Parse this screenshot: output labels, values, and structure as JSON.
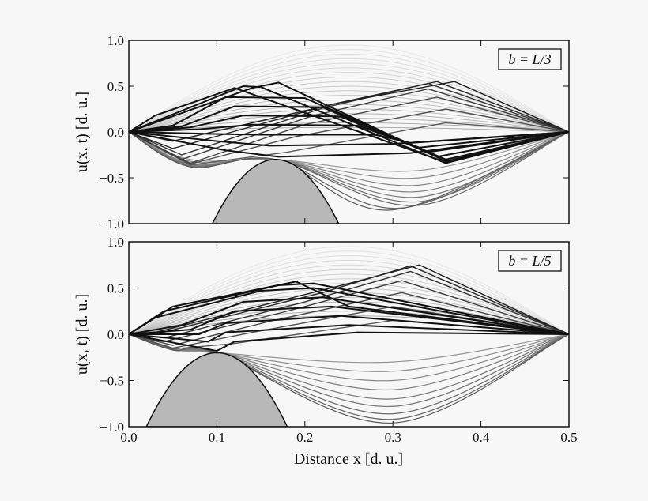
{
  "chart_data": [
    {
      "type": "line",
      "annotation": "b = L/3",
      "xlabel": "",
      "ylabel": "u(x, t) [d. u.]",
      "xlim": [
        0,
        0.5
      ],
      "ylim": [
        -1,
        1
      ],
      "xticks": [
        "0.0",
        "0.1",
        "0.2",
        "0.3",
        "0.4",
        "0.5"
      ],
      "yticks": [
        "1.0",
        "0.5",
        "0.0",
        "−0.5",
        "−1.0"
      ],
      "grid": false,
      "obstacle": {
        "apex": [
          0.1667,
          -0.3
        ],
        "base_x": [
          0.095,
          0.24
        ],
        "fill": "#b8b8b8"
      },
      "sine_amplitudes": [
        0.95,
        0.9,
        0.85,
        0.8,
        0.75,
        0.7,
        0.65,
        0.6,
        0.55,
        0.5,
        0.45,
        0.4,
        0.35,
        0.3,
        0.25,
        0.2,
        0.15,
        0.1,
        0.05
      ],
      "contact_curves": [
        [
          [
            0,
            0
          ],
          [
            0.07,
            -0.3
          ],
          [
            0.1667,
            -0.3
          ],
          [
            0.33,
            -0.42
          ],
          [
            0.5,
            0
          ]
        ],
        [
          [
            0,
            0
          ],
          [
            0.07,
            -0.32
          ],
          [
            0.1667,
            -0.3
          ],
          [
            0.33,
            -0.5
          ],
          [
            0.5,
            0
          ]
        ],
        [
          [
            0,
            0
          ],
          [
            0.07,
            -0.34
          ],
          [
            0.1667,
            -0.3
          ],
          [
            0.33,
            -0.58
          ],
          [
            0.5,
            0
          ]
        ],
        [
          [
            0,
            0
          ],
          [
            0.07,
            -0.35
          ],
          [
            0.1667,
            -0.3
          ],
          [
            0.33,
            -0.65
          ],
          [
            0.5,
            0
          ]
        ],
        [
          [
            0,
            0
          ],
          [
            0.07,
            -0.36
          ],
          [
            0.1667,
            -0.3
          ],
          [
            0.33,
            -0.71
          ],
          [
            0.5,
            0
          ]
        ],
        [
          [
            0,
            0
          ],
          [
            0.07,
            -0.37
          ],
          [
            0.1667,
            -0.3
          ],
          [
            0.33,
            -0.76
          ],
          [
            0.5,
            0
          ]
        ],
        [
          [
            0,
            0
          ],
          [
            0.07,
            -0.38
          ],
          [
            0.1667,
            -0.3
          ],
          [
            0.33,
            -0.8
          ],
          [
            0.5,
            0
          ]
        ],
        [
          [
            0,
            0
          ],
          [
            0.07,
            -0.38
          ],
          [
            0.1667,
            -0.3
          ],
          [
            0.31,
            -0.83
          ],
          [
            0.5,
            0
          ]
        ],
        [
          [
            0,
            0
          ],
          [
            0.07,
            -0.38
          ],
          [
            0.1667,
            -0.3
          ],
          [
            0.3,
            -0.85
          ],
          [
            0.5,
            0
          ]
        ]
      ],
      "rebound_curves": [
        [
          [
            0,
            0
          ],
          [
            0.07,
            -0.36
          ],
          [
            0.18,
            -0.22
          ],
          [
            0.36,
            0.1
          ],
          [
            0.5,
            0
          ]
        ],
        [
          [
            0,
            0
          ],
          [
            0.07,
            -0.35
          ],
          [
            0.19,
            -0.05
          ],
          [
            0.36,
            0.25
          ],
          [
            0.5,
            0
          ]
        ],
        [
          [
            0,
            0
          ],
          [
            0.07,
            -0.34
          ],
          [
            0.2,
            0.08
          ],
          [
            0.35,
            0.38
          ],
          [
            0.5,
            0
          ]
        ],
        [
          [
            0,
            0
          ],
          [
            0.06,
            -0.3
          ],
          [
            0.21,
            0.18
          ],
          [
            0.34,
            0.47
          ],
          [
            0.5,
            0
          ]
        ],
        [
          [
            0,
            0
          ],
          [
            0.06,
            -0.25
          ],
          [
            0.22,
            0.26
          ],
          [
            0.34,
            0.53
          ],
          [
            0.5,
            0
          ]
        ],
        [
          [
            0,
            0
          ],
          [
            0.05,
            -0.18
          ],
          [
            0.23,
            0.3
          ],
          [
            0.35,
            0.55
          ],
          [
            0.5,
            0
          ]
        ],
        [
          [
            0,
            0
          ],
          [
            0.05,
            -0.1
          ],
          [
            0.24,
            0.32
          ],
          [
            0.37,
            0.55
          ],
          [
            0.5,
            0
          ]
        ]
      ],
      "kinked_curves": [
        [
          [
            0,
            0
          ],
          [
            0.03,
            0.18
          ],
          [
            0.12,
            0.48
          ],
          [
            0.36,
            -0.33
          ],
          [
            0.5,
            0
          ]
        ],
        [
          [
            0,
            0
          ],
          [
            0.13,
            0.5
          ],
          [
            0.15,
            0.49
          ],
          [
            0.36,
            -0.34
          ],
          [
            0.5,
            0
          ]
        ],
        [
          [
            0,
            0
          ],
          [
            0.14,
            0.48
          ],
          [
            0.17,
            0.54
          ],
          [
            0.36,
            -0.32
          ],
          [
            0.5,
            0
          ]
        ],
        [
          [
            0,
            0
          ],
          [
            0.05,
            0.07
          ],
          [
            0.11,
            0.38
          ],
          [
            0.2,
            0.37
          ],
          [
            0.36,
            -0.3
          ],
          [
            0.5,
            0
          ]
        ],
        [
          [
            0,
            0
          ],
          [
            0.06,
            0.06
          ],
          [
            0.12,
            0.28
          ],
          [
            0.22,
            0.27
          ],
          [
            0.35,
            -0.27
          ],
          [
            0.5,
            0
          ]
        ],
        [
          [
            0,
            0
          ],
          [
            0.07,
            0.05
          ],
          [
            0.13,
            0.18
          ],
          [
            0.24,
            0.17
          ],
          [
            0.34,
            -0.22
          ],
          [
            0.5,
            0
          ]
        ],
        [
          [
            0,
            0
          ],
          [
            0.08,
            0.03
          ],
          [
            0.14,
            0.08
          ],
          [
            0.26,
            0.07
          ],
          [
            0.33,
            -0.17
          ],
          [
            0.5,
            0
          ]
        ],
        [
          [
            0,
            0
          ],
          [
            0.09,
            -0.02
          ],
          [
            0.15,
            -0.03
          ],
          [
            0.28,
            -0.03
          ],
          [
            0.32,
            -0.12
          ],
          [
            0.5,
            0
          ]
        ],
        [
          [
            0,
            0
          ],
          [
            0.1,
            -0.1
          ],
          [
            0.16,
            -0.15
          ],
          [
            0.3,
            -0.13
          ],
          [
            0.5,
            0
          ]
        ],
        [
          [
            0,
            0
          ],
          [
            0.11,
            -0.2
          ],
          [
            0.17,
            -0.27
          ],
          [
            0.32,
            -0.23
          ],
          [
            0.5,
            0
          ]
        ]
      ]
    },
    {
      "type": "line",
      "annotation": "b = L/5",
      "xlabel": "Distance x [d. u.]",
      "ylabel": "u(x, t) [d. u.]",
      "xlim": [
        0,
        0.5
      ],
      "ylim": [
        -1,
        1
      ],
      "xticks": [
        "0.0",
        "0.1",
        "0.2",
        "0.3",
        "0.4",
        "0.5"
      ],
      "yticks": [
        "1.0",
        "0.5",
        "0.0",
        "−0.5",
        "−1.0"
      ],
      "grid": false,
      "obstacle": {
        "apex": [
          0.1,
          -0.2
        ],
        "base_x": [
          0.02,
          0.18
        ],
        "fill": "#b8b8b8"
      },
      "sine_amplitudes": [
        0.95,
        0.9,
        0.85,
        0.8,
        0.75,
        0.7,
        0.65,
        0.6,
        0.55,
        0.5,
        0.45,
        0.4,
        0.35,
        0.3,
        0.25,
        0.2
      ],
      "contact_curves": [
        [
          [
            0,
            0
          ],
          [
            0.05,
            -0.16
          ],
          [
            0.1,
            -0.2
          ],
          [
            0.3,
            -0.3
          ],
          [
            0.5,
            0
          ]
        ],
        [
          [
            0,
            0
          ],
          [
            0.05,
            -0.16
          ],
          [
            0.1,
            -0.2
          ],
          [
            0.3,
            -0.4
          ],
          [
            0.5,
            0
          ]
        ],
        [
          [
            0,
            0
          ],
          [
            0.05,
            -0.16
          ],
          [
            0.1,
            -0.2
          ],
          [
            0.3,
            -0.5
          ],
          [
            0.5,
            0
          ]
        ],
        [
          [
            0,
            0
          ],
          [
            0.05,
            -0.17
          ],
          [
            0.1,
            -0.2
          ],
          [
            0.3,
            -0.6
          ],
          [
            0.5,
            0
          ]
        ],
        [
          [
            0,
            0
          ],
          [
            0.05,
            -0.17
          ],
          [
            0.1,
            -0.2
          ],
          [
            0.3,
            -0.7
          ],
          [
            0.5,
            0
          ]
        ],
        [
          [
            0,
            0
          ],
          [
            0.05,
            -0.17
          ],
          [
            0.1,
            -0.2
          ],
          [
            0.3,
            -0.78
          ],
          [
            0.5,
            0
          ]
        ],
        [
          [
            0,
            0
          ],
          [
            0.05,
            -0.17
          ],
          [
            0.1,
            -0.2
          ],
          [
            0.3,
            -0.86
          ],
          [
            0.5,
            0
          ]
        ],
        [
          [
            0,
            0
          ],
          [
            0.05,
            -0.17
          ],
          [
            0.1,
            -0.2
          ],
          [
            0.3,
            -0.92
          ],
          [
            0.5,
            0
          ]
        ],
        [
          [
            0,
            0
          ],
          [
            0.05,
            -0.17
          ],
          [
            0.1,
            -0.2
          ],
          [
            0.3,
            -0.96
          ],
          [
            0.5,
            0
          ]
        ]
      ],
      "rebound_curves": [
        [
          [
            0,
            0
          ],
          [
            0.05,
            -0.16
          ],
          [
            0.12,
            -0.1
          ],
          [
            0.3,
            0.15
          ],
          [
            0.5,
            0
          ]
        ],
        [
          [
            0,
            0
          ],
          [
            0.05,
            -0.15
          ],
          [
            0.14,
            0.02
          ],
          [
            0.3,
            0.3
          ],
          [
            0.5,
            0
          ]
        ],
        [
          [
            0,
            0
          ],
          [
            0.05,
            -0.12
          ],
          [
            0.16,
            0.14
          ],
          [
            0.31,
            0.45
          ],
          [
            0.5,
            0
          ]
        ],
        [
          [
            0,
            0
          ],
          [
            0.04,
            -0.08
          ],
          [
            0.18,
            0.25
          ],
          [
            0.31,
            0.58
          ],
          [
            0.5,
            0
          ]
        ],
        [
          [
            0,
            0
          ],
          [
            0.04,
            -0.04
          ],
          [
            0.2,
            0.35
          ],
          [
            0.32,
            0.68
          ],
          [
            0.5,
            0
          ]
        ],
        [
          [
            0,
            0
          ],
          [
            0.03,
            0.0
          ],
          [
            0.22,
            0.45
          ],
          [
            0.32,
            0.74
          ],
          [
            0.5,
            0
          ]
        ],
        [
          [
            0,
            0
          ],
          [
            0.03,
            0.02
          ],
          [
            0.25,
            0.55
          ],
          [
            0.33,
            0.75
          ],
          [
            0.5,
            0
          ]
        ]
      ],
      "kinked_curves": [
        [
          [
            0,
            0
          ],
          [
            0.05,
            0.3
          ],
          [
            0.19,
            0.57
          ],
          [
            0.25,
            0.3
          ],
          [
            0.5,
            0
          ]
        ],
        [
          [
            0,
            0
          ],
          [
            0.04,
            0.25
          ],
          [
            0.17,
            0.53
          ],
          [
            0.21,
            0.55
          ],
          [
            0.5,
            0
          ]
        ],
        [
          [
            0,
            0
          ],
          [
            0.03,
            0.18
          ],
          [
            0.15,
            0.47
          ],
          [
            0.21,
            0.5
          ],
          [
            0.5,
            0
          ]
        ],
        [
          [
            0,
            0
          ],
          [
            0.06,
            0.1
          ],
          [
            0.13,
            0.35
          ],
          [
            0.22,
            0.4
          ],
          [
            0.5,
            0
          ]
        ],
        [
          [
            0,
            0
          ],
          [
            0.07,
            0.05
          ],
          [
            0.12,
            0.25
          ],
          [
            0.23,
            0.3
          ],
          [
            0.5,
            0
          ]
        ],
        [
          [
            0,
            0
          ],
          [
            0.08,
            0.0
          ],
          [
            0.11,
            0.12
          ],
          [
            0.24,
            0.2
          ],
          [
            0.5,
            0
          ]
        ],
        [
          [
            0,
            0
          ],
          [
            0.09,
            -0.08
          ],
          [
            0.11,
            0.02
          ],
          [
            0.25,
            0.1
          ],
          [
            0.5,
            0
          ]
        ],
        [
          [
            0,
            0
          ],
          [
            0.1,
            -0.18
          ],
          [
            0.12,
            -0.08
          ],
          [
            0.26,
            0.02
          ],
          [
            0.5,
            0
          ]
        ]
      ]
    }
  ]
}
